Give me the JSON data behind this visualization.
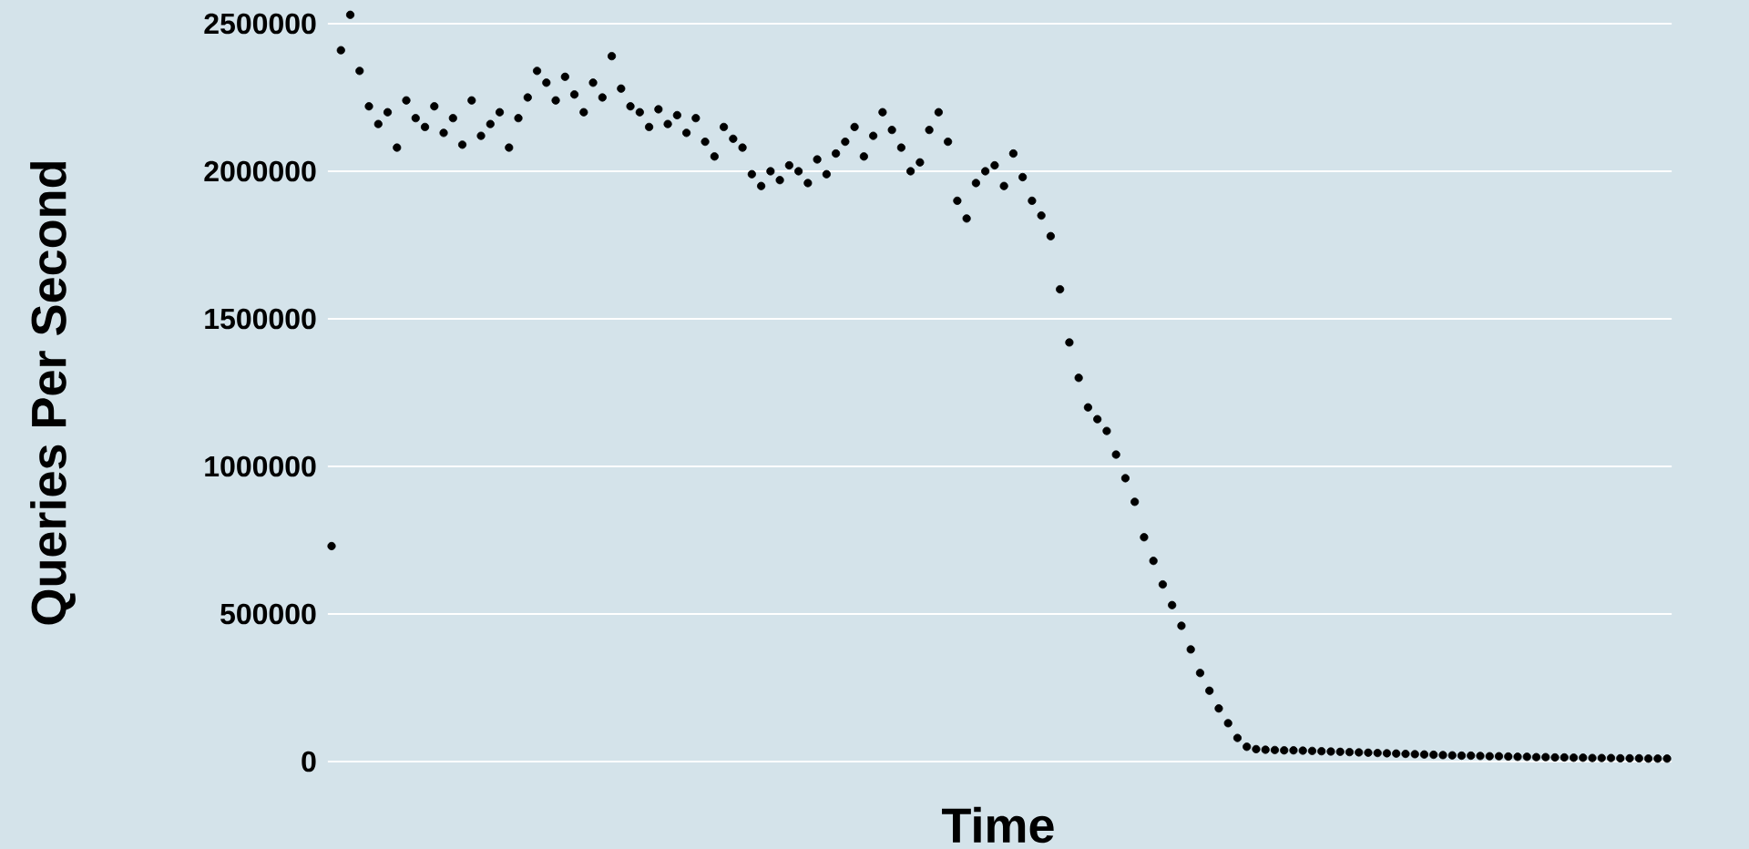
{
  "chart_data": {
    "type": "scatter",
    "xlabel": "Time",
    "ylabel": "Queries Per Second",
    "color": "#000000",
    "grid": "y",
    "tick_labels": "y",
    "ylim": [
      -60000,
      2560000
    ],
    "yticks": [
      0,
      500000,
      1000000,
      1500000,
      2000000,
      2500000
    ],
    "categories": [
      null,
      null,
      null,
      null,
      null,
      null,
      null,
      null,
      null,
      null,
      null,
      null,
      null,
      null,
      null,
      null,
      null,
      null,
      null,
      null,
      null,
      null,
      null,
      null,
      null,
      null,
      null,
      null,
      null,
      null,
      null,
      null,
      null,
      null,
      null,
      null,
      null,
      null,
      null,
      null,
      null,
      null,
      null,
      null,
      null,
      null,
      null,
      null,
      null,
      null,
      null,
      null,
      null,
      null,
      null,
      null,
      null,
      null,
      null,
      null,
      null,
      null,
      null,
      null,
      null,
      null,
      null,
      null,
      null,
      null,
      null,
      null,
      null,
      null,
      null,
      null,
      null,
      null,
      null,
      null,
      null,
      null,
      null,
      null,
      null,
      null,
      null,
      null,
      null,
      null,
      null,
      null,
      null,
      null,
      null,
      null,
      null,
      null,
      null,
      null,
      null,
      null,
      null,
      null,
      null,
      null,
      null,
      null,
      null,
      null,
      null,
      null,
      null,
      null,
      null,
      null,
      null,
      null,
      null,
      null,
      null,
      null,
      null,
      null,
      null,
      null,
      null,
      null,
      null,
      null,
      null,
      null,
      null,
      null,
      null,
      null,
      null,
      null,
      null,
      null,
      null,
      null,
      null,
      null
    ],
    "values": [
      730000,
      2410000,
      2530000,
      2340000,
      2220000,
      2160000,
      2200000,
      2080000,
      2240000,
      2180000,
      2150000,
      2220000,
      2130000,
      2180000,
      2090000,
      2240000,
      2120000,
      2160000,
      2200000,
      2080000,
      2180000,
      2250000,
      2340000,
      2300000,
      2240000,
      2320000,
      2260000,
      2200000,
      2300000,
      2250000,
      2390000,
      2280000,
      2220000,
      2200000,
      2150000,
      2210000,
      2160000,
      2190000,
      2130000,
      2180000,
      2100000,
      2050000,
      2150000,
      2110000,
      2080000,
      1990000,
      1950000,
      2000000,
      1970000,
      2020000,
      2000000,
      1960000,
      2040000,
      1990000,
      2060000,
      2100000,
      2150000,
      2050000,
      2120000,
      2200000,
      2140000,
      2080000,
      2000000,
      2030000,
      2140000,
      2200000,
      2100000,
      1900000,
      1840000,
      1960000,
      2000000,
      2020000,
      1950000,
      2060000,
      1980000,
      1900000,
      1850000,
      1780000,
      1600000,
      1420000,
      1300000,
      1200000,
      1160000,
      1120000,
      1040000,
      960000,
      880000,
      760000,
      680000,
      600000,
      530000,
      460000,
      380000,
      300000,
      240000,
      180000,
      130000,
      80000,
      50000,
      42000,
      40000,
      39000,
      38000,
      38000,
      37000,
      36000,
      35000,
      34000,
      33000,
      32000,
      31000,
      30000,
      29000,
      28000,
      27000,
      26000,
      25000,
      24000,
      23000,
      22000,
      21000,
      20000,
      20000,
      19000,
      18000,
      18000,
      17000,
      16000,
      16000,
      15000,
      15000,
      14000,
      14000,
      13000,
      13000,
      12000,
      12000,
      12000,
      11000,
      11000,
      11000,
      10000,
      10000,
      10000
    ]
  }
}
